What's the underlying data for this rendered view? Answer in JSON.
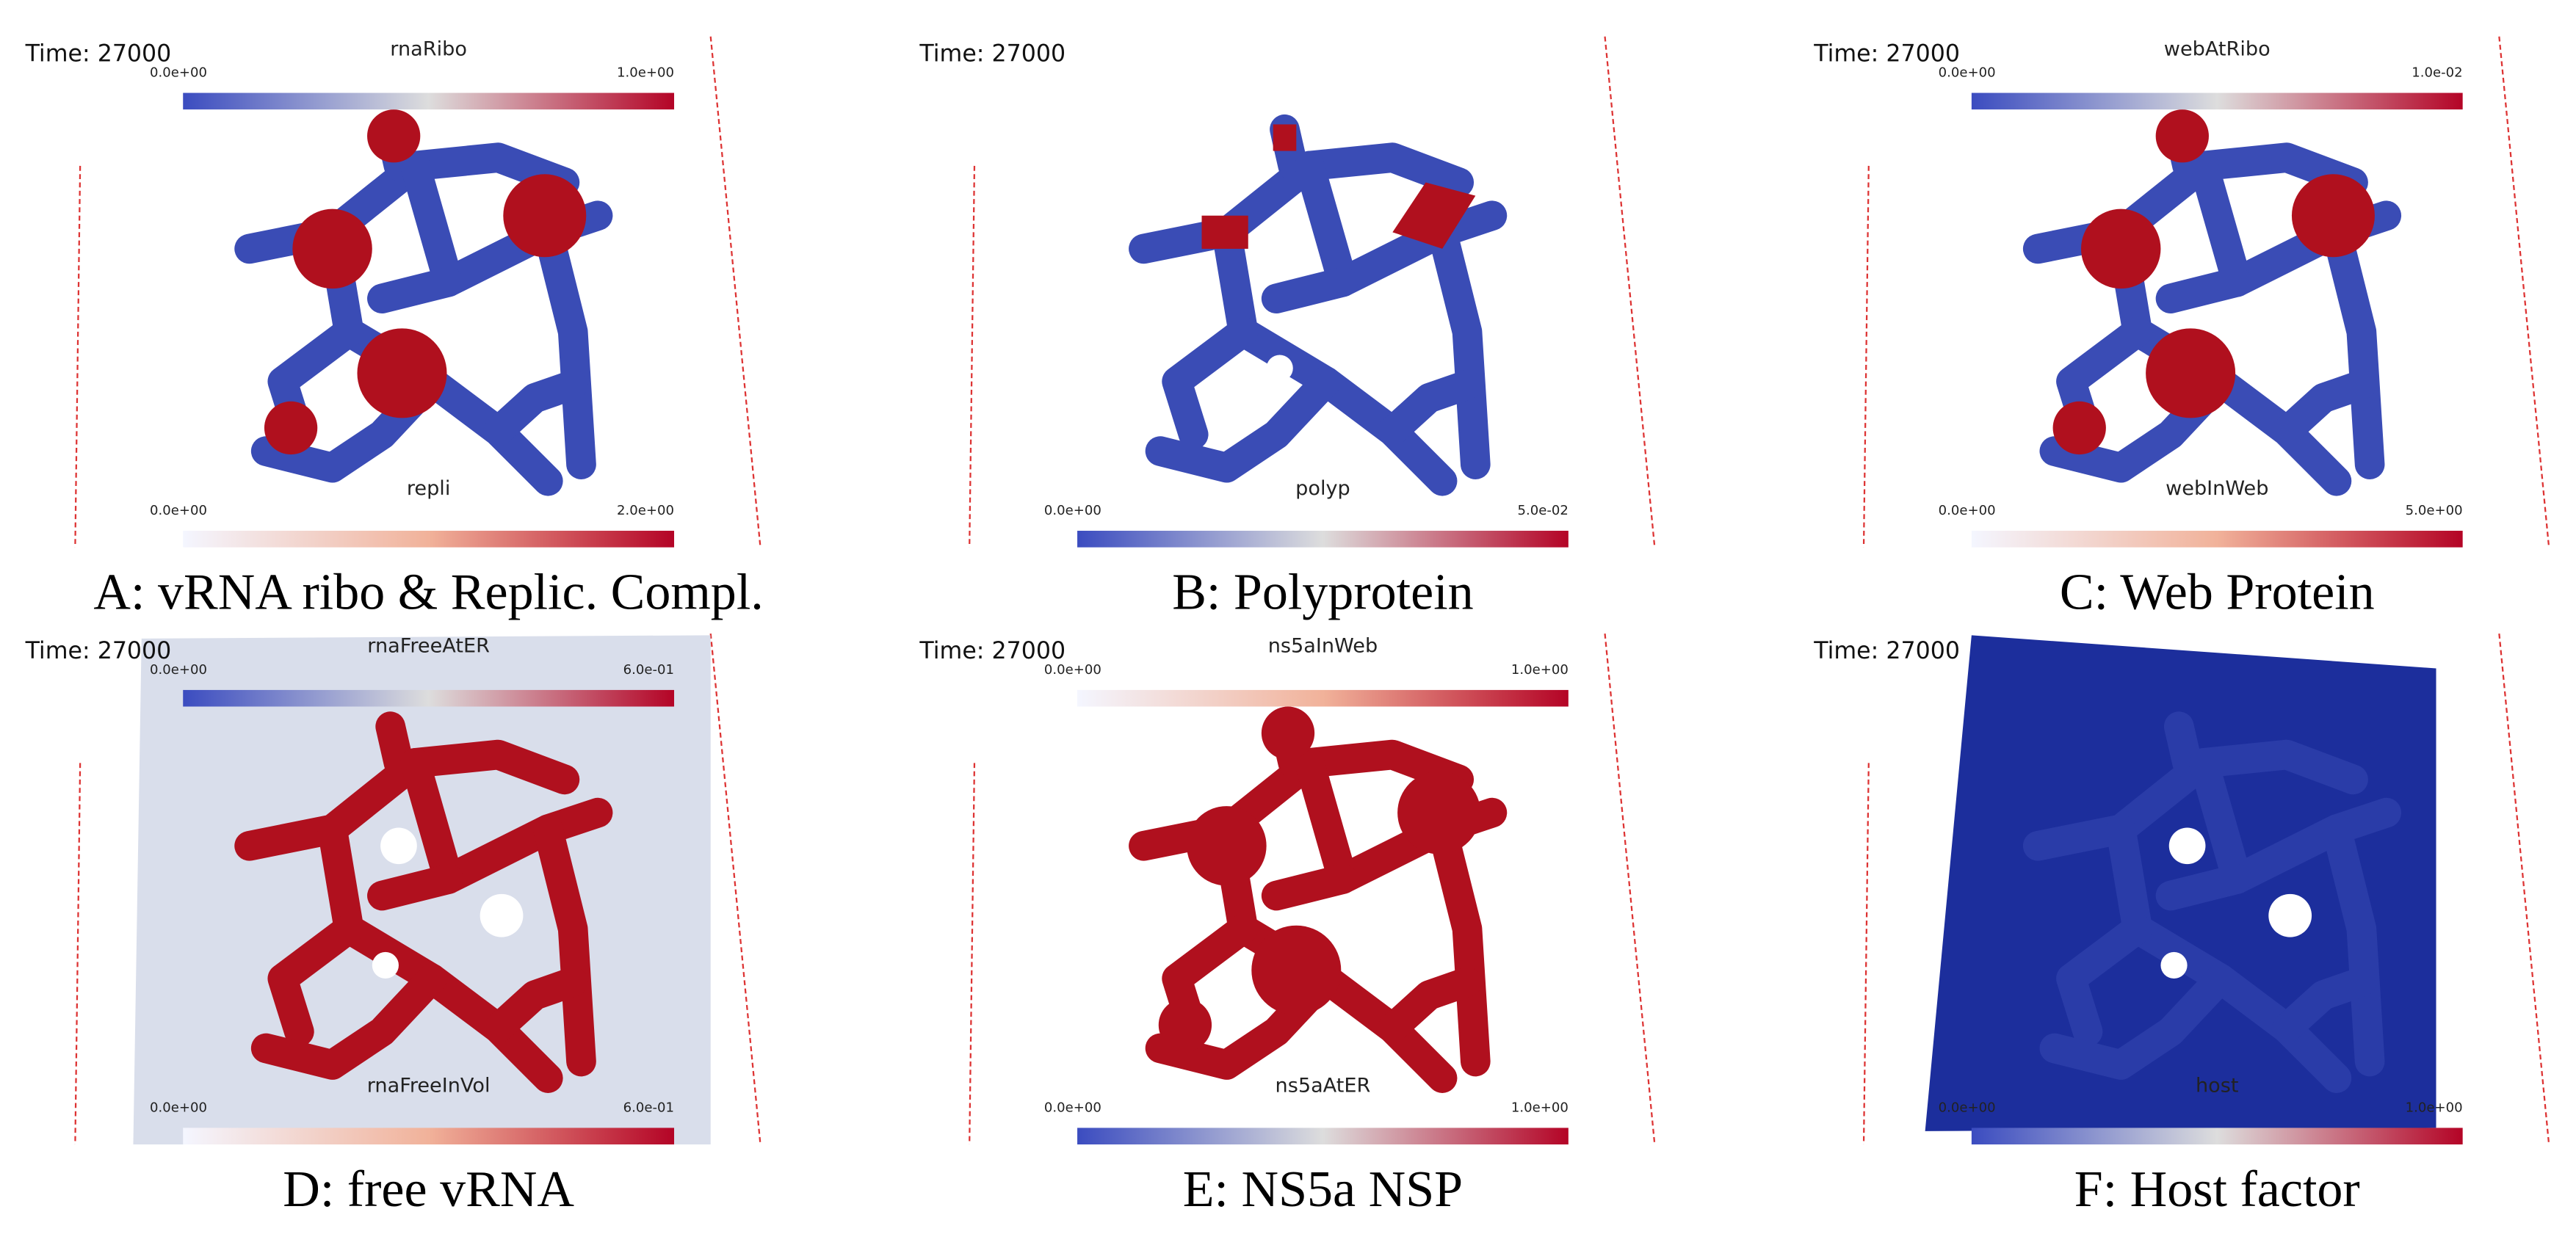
{
  "panels": [
    {
      "caption": "A: vRNA ribo & Replic. Compl.",
      "time": "Time: 27000",
      "top_colorbar": {
        "title": "rnaRibo",
        "min_label": "0.0e+00",
        "max_label": "1.0e+00",
        "colormap": "coolwarm"
      },
      "bottom_colorbar": {
        "title": "repli",
        "min_label": "0.0e+00",
        "max_label": "2.0e+00",
        "colormap": "reds"
      }
    },
    {
      "caption": "B: Polyprotein",
      "time": "Time: 27000",
      "bottom_colorbar": {
        "title": "polyp",
        "min_label": "0.0e+00",
        "max_label": "5.0e-02",
        "colormap": "coolwarm"
      }
    },
    {
      "caption": "C: Web Protein",
      "time": "Time: 27000",
      "top_colorbar": {
        "title": "webAtRibo",
        "min_label": "0.0e+00",
        "max_label": "1.0e-02",
        "colormap": "coolwarm"
      },
      "bottom_colorbar": {
        "title": "webInWeb",
        "min_label": "0.0e+00",
        "max_label": "5.0e+00",
        "colormap": "reds"
      }
    },
    {
      "caption": "D: free vRNA",
      "time": "Time: 27000",
      "top_colorbar": {
        "title": "rnaFreeAtER",
        "min_label": "0.0e+00",
        "max_label": "6.0e-01",
        "colormap": "coolwarm"
      },
      "bottom_colorbar": {
        "title": "rnaFreeInVol",
        "min_label": "0.0e+00",
        "max_label": "6.0e-01",
        "colormap": "reds"
      }
    },
    {
      "caption": "E: NS5a NSP",
      "time": "Time: 27000",
      "top_colorbar": {
        "title": "ns5aInWeb",
        "min_label": "0.0e+00",
        "max_label": "1.0e+00",
        "colormap": "reds"
      },
      "bottom_colorbar": {
        "title": "ns5aAtER",
        "min_label": "0.0e+00",
        "max_label": "1.0e+00",
        "colormap": "coolwarm"
      }
    },
    {
      "caption": "F: Host factor",
      "time": "Time: 27000",
      "bottom_colorbar": {
        "title": "host",
        "min_label": "0.0e+00",
        "max_label": "1.0e+00",
        "colormap": "coolwarm"
      }
    }
  ]
}
